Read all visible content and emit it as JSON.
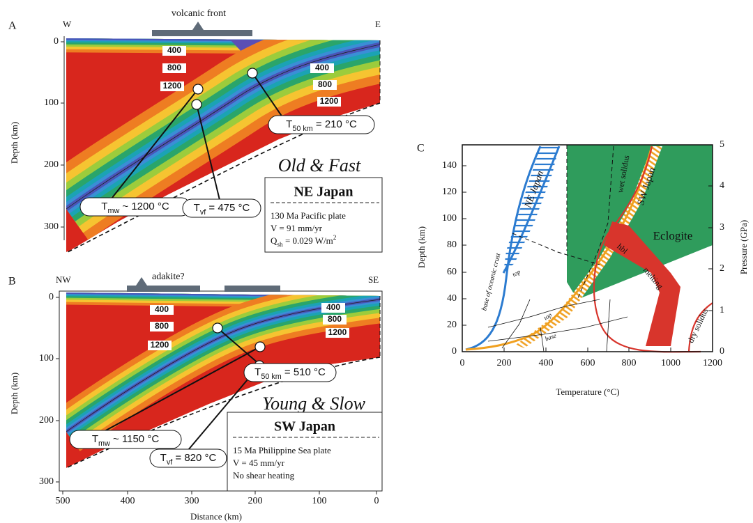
{
  "panel_a": {
    "label": "A",
    "west": "W",
    "east": "E",
    "surface_label": "volcanic front",
    "y_axis_label": "Depth (km)",
    "y_ticks": [
      "0",
      "100",
      "200",
      "300"
    ],
    "wedge_contours": [
      "400",
      "800",
      "1200"
    ],
    "slab_contours": [
      "400",
      "800",
      "1200"
    ],
    "callouts": [
      [
        {
          "text": "T"
        },
        {
          "sub": "50 km"
        },
        {
          "text": " = 210 °C"
        }
      ],
      [
        {
          "text": "T"
        },
        {
          "sub": "mw"
        },
        {
          "text": " ~ 1200 °C"
        }
      ],
      [
        {
          "text": "T"
        },
        {
          "sub": "vf"
        },
        {
          "text": " = 475 °C"
        }
      ]
    ],
    "regime": "Old & Fast",
    "box": {
      "title": "NE Japan",
      "lines": [
        [
          {
            "text": "130 Ma Pacific plate"
          }
        ],
        [
          {
            "text": "V = 91 mm/yr"
          }
        ],
        [
          {
            "text": "Q"
          },
          {
            "sub": "sh"
          },
          {
            "text": " = 0.029 W/m"
          },
          {
            "sup": "2"
          }
        ]
      ]
    }
  },
  "panel_b": {
    "label": "B",
    "west": "NW",
    "east": "SE",
    "surface_label": "adakite?",
    "y_axis_label": "Depth (km)",
    "y_ticks": [
      "0",
      "100",
      "200",
      "300"
    ],
    "x_axis_label": "Distance (km)",
    "x_ticks": [
      "500",
      "400",
      "300",
      "200",
      "100",
      "0"
    ],
    "wedge_contours": [
      "400",
      "800",
      "1200"
    ],
    "slab_contours": [
      "400",
      "800",
      "1200"
    ],
    "callouts": [
      [
        {
          "text": "T"
        },
        {
          "sub": "50 km"
        },
        {
          "text": " = 510 °C"
        }
      ],
      [
        {
          "text": "T"
        },
        {
          "sub": "mw"
        },
        {
          "text": " ~ 1150 °C"
        }
      ],
      [
        {
          "text": "T"
        },
        {
          "sub": "vf"
        },
        {
          "text": " = 820 °C"
        }
      ]
    ],
    "regime": "Young & Slow",
    "box": {
      "title": "SW Japan",
      "lines": [
        [
          {
            "text": "15 Ma Philippine Sea plate"
          }
        ],
        [
          {
            "text": "V = 45 mm/yr"
          }
        ],
        [
          {
            "text": "No shear heating"
          }
        ]
      ]
    }
  },
  "panel_c": {
    "label": "C",
    "y_axis_label": "Depth (km)",
    "y2_axis_label": "Pressure (GPa)",
    "x_axis_label": "Temperature (°C)",
    "y_ticks": [
      "0",
      "20",
      "40",
      "60",
      "80",
      "100",
      "120",
      "140"
    ],
    "y2_ticks": [
      "0",
      "1",
      "2",
      "3",
      "4",
      "5"
    ],
    "x_ticks": [
      "0",
      "200",
      "400",
      "600",
      "800",
      "1000",
      "1200"
    ],
    "labels": {
      "ne_japan": "NE Japan",
      "sw_japan": "SW Japan",
      "wet_solidus": "wet solidus",
      "eclogite": "Eclogite",
      "hbl": "hbl",
      "melting": "melting",
      "dry_solidus": "dry solidus",
      "base_of_oceanic_crust": "base of oceanic crust",
      "top_ne": "top",
      "top_sw": "top",
      "base_sw": "base"
    }
  }
}
